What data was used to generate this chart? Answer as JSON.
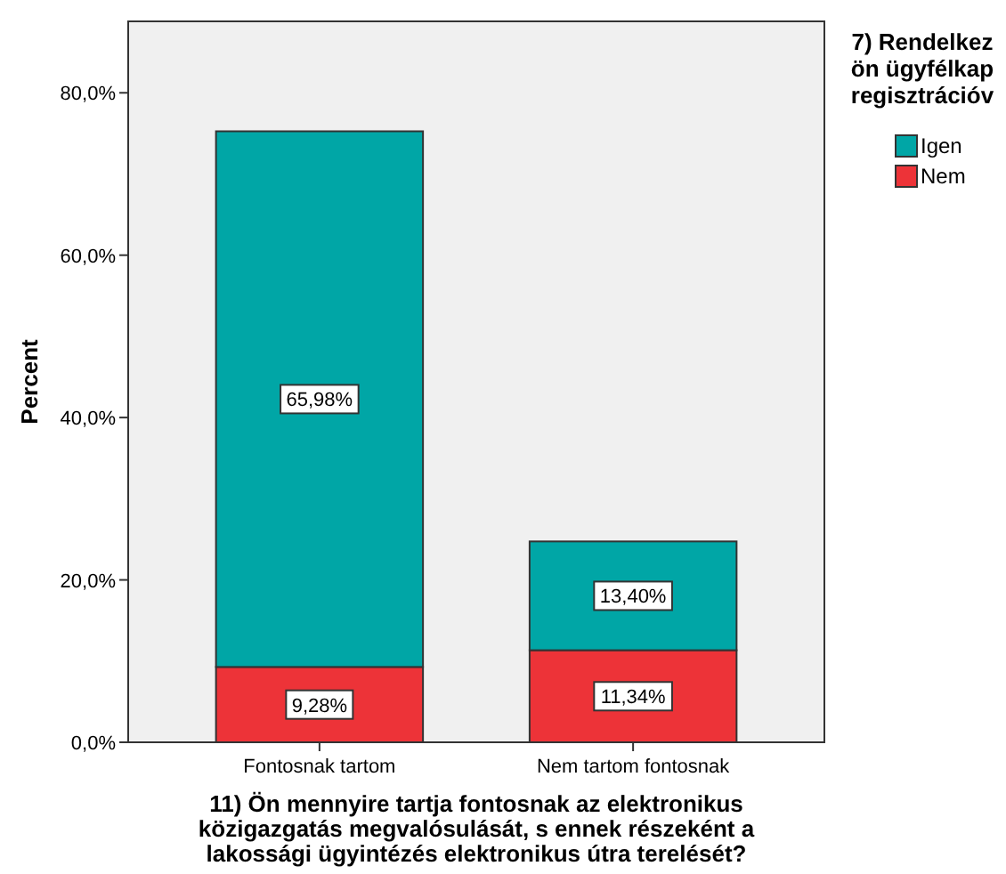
{
  "chart_data": {
    "type": "bar",
    "stacked": true,
    "categories": [
      "Fontosnak tartom",
      "Nem tartom fontosnak"
    ],
    "series": [
      {
        "name": "Nem",
        "color": "#ed3338",
        "values": [
          9.28,
          11.34
        ],
        "value_labels": [
          "9,28%",
          "11,34%"
        ]
      },
      {
        "name": "Igen",
        "color": "#00a6a6",
        "values": [
          65.98,
          13.4
        ],
        "value_labels": [
          "65,98%",
          "13,40%"
        ]
      }
    ],
    "ylim": [
      0,
      88.8
    ],
    "yticks": [
      {
        "value": 0,
        "label": "0,0%"
      },
      {
        "value": 20,
        "label": "20,0%"
      },
      {
        "value": 40,
        "label": "40,0%"
      },
      {
        "value": 60,
        "label": "60,0%"
      },
      {
        "value": 80,
        "label": "80,0%"
      }
    ],
    "ylabel": "Percent",
    "xlabel": "11) Ön mennyire tartja fontosnak az elektronikus\nközigazgatás megvalósulását, s ennek részeként a\nlakossági ügyintézés elektronikus útra terelését?",
    "legend_title": "7) Rendelkez\nön ügyfélkap\nregisztrációv",
    "legend": "right",
    "grid": false
  }
}
